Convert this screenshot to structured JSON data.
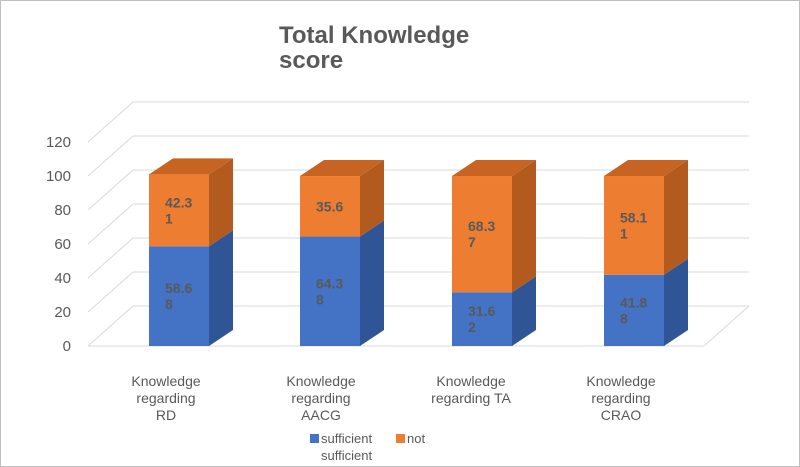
{
  "chart_data": {
    "type": "bar",
    "stacked": true,
    "three_d": true,
    "title_lines": [
      "Total Knowledge",
      "score"
    ],
    "categories": [
      [
        "Knowledge",
        "regarding",
        "RD"
      ],
      [
        "Knowledge",
        "regarding",
        "AACG"
      ],
      [
        "Knowledge",
        "regarding TA"
      ],
      [
        "Knowledge",
        "regarding",
        "CRAO"
      ]
    ],
    "series": [
      {
        "name": "sufficient",
        "values": [
          58.68,
          64.38,
          31.62,
          41.88
        ],
        "labels": [
          [
            "58.6",
            "8"
          ],
          [
            "64.3",
            "8"
          ],
          [
            "31.6",
            "2"
          ],
          [
            "41.8",
            "8"
          ]
        ]
      },
      {
        "name": "not sufficient",
        "values": [
          42.31,
          35.6,
          68.37,
          58.11
        ],
        "labels": [
          [
            "42.3",
            "1"
          ],
          [
            "35.6"
          ],
          [
            "68.3",
            "7"
          ],
          [
            "58.1",
            "1"
          ]
        ]
      }
    ],
    "yticks": [
      0,
      20,
      40,
      60,
      80,
      100,
      120
    ],
    "ylim": [
      0,
      120
    ],
    "grid": true,
    "legend": {
      "position": "bottom",
      "lines": [
        [
          "sufficient",
          "not"
        ],
        [
          "sufficient"
        ]
      ]
    },
    "colors": {
      "sufficient_front": "#4472c4",
      "sufficient_side": "#2f5597",
      "sufficient_top": "#5b86d3",
      "not_front": "#ed7d31",
      "not_side": "#b35a1f",
      "not_top": "#c76422",
      "grid": "#d9d9d9",
      "text": "#595959"
    }
  }
}
